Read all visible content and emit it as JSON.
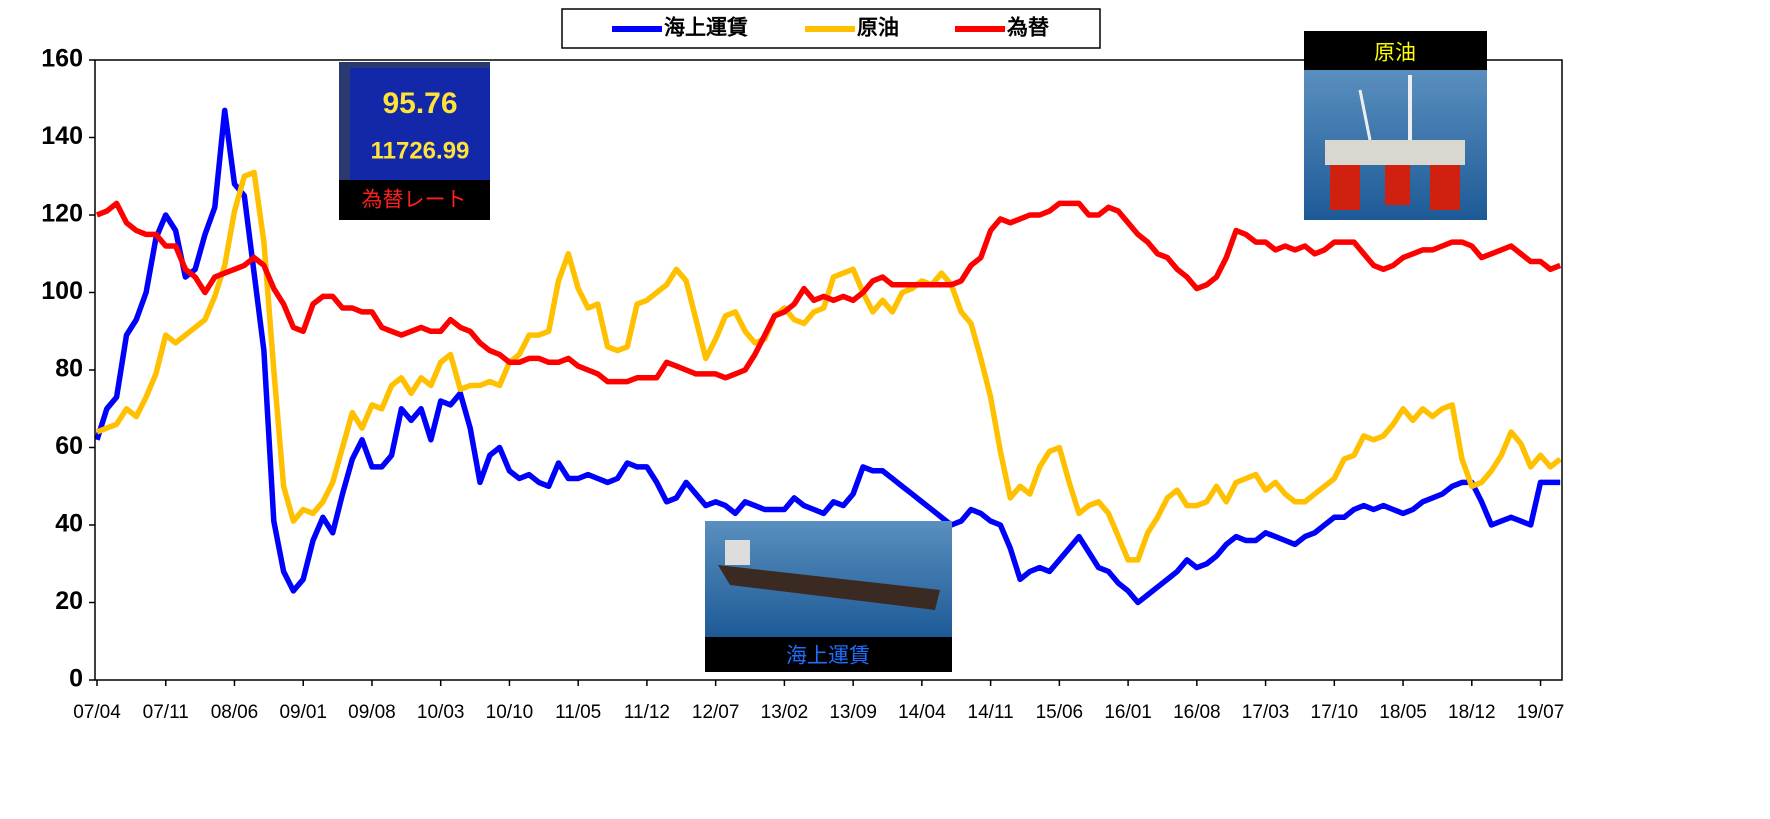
{
  "chart_data": {
    "type": "line",
    "categories": [
      "07/04",
      null,
      null,
      null,
      null,
      null,
      null,
      "07/11",
      null,
      null,
      null,
      null,
      null,
      null,
      "08/06",
      null,
      null,
      null,
      null,
      null,
      null,
      "09/01",
      null,
      null,
      null,
      null,
      null,
      null,
      "09/08",
      null,
      null,
      null,
      null,
      null,
      null,
      "10/03",
      null,
      null,
      null,
      null,
      null,
      null,
      "10/10",
      null,
      null,
      null,
      null,
      null,
      null,
      "11/05",
      null,
      null,
      null,
      null,
      null,
      null,
      "11/12",
      null,
      null,
      null,
      null,
      null,
      null,
      "12/07",
      null,
      null,
      null,
      null,
      null,
      null,
      "13/02",
      null,
      null,
      null,
      null,
      null,
      null,
      "13/09",
      null,
      null,
      null,
      null,
      null,
      null,
      "14/04",
      null,
      null,
      null,
      null,
      null,
      null,
      "14/11",
      null,
      null,
      null,
      null,
      null,
      null,
      "15/06",
      null,
      null,
      null,
      null,
      null,
      null,
      "16/01",
      null,
      null,
      null,
      null,
      null,
      null,
      "16/08",
      null,
      null,
      null,
      null,
      null,
      null,
      "17/03",
      null,
      null,
      null,
      null,
      null,
      null,
      "17/10",
      null,
      null,
      null,
      null,
      null,
      null,
      "18/05",
      null,
      null,
      null,
      null,
      null,
      null,
      "18/12",
      null,
      null,
      null,
      null,
      null,
      null,
      "19/07",
      null,
      null
    ],
    "series": [
      {
        "name": "海上運賃",
        "color": "#0000ff",
        "values": [
          62,
          70,
          73,
          89,
          93,
          100,
          114,
          120,
          116,
          104,
          106,
          115,
          122,
          147,
          128,
          125,
          105,
          85,
          41,
          28,
          23,
          26,
          36,
          42,
          38,
          48,
          57,
          62,
          55,
          55,
          58,
          70,
          67,
          70,
          62,
          72,
          71,
          74,
          65,
          51,
          58,
          60,
          54,
          52,
          53,
          51,
          50,
          56,
          52,
          52,
          53,
          52,
          51,
          52,
          56,
          55,
          55,
          51,
          46,
          47,
          51,
          48,
          45,
          46,
          45,
          43,
          46,
          45,
          44,
          44,
          44,
          47,
          45,
          44,
          43,
          46,
          45,
          48,
          55,
          54,
          54,
          52,
          50,
          48,
          46,
          44,
          42,
          40,
          41,
          44,
          43,
          41,
          40,
          34,
          26,
          28,
          29,
          28,
          31,
          34,
          37,
          33,
          29,
          28,
          25,
          23,
          20,
          22,
          24,
          26,
          28,
          31,
          29,
          30,
          32,
          35,
          37,
          36,
          36,
          38,
          37,
          36,
          35,
          37,
          38,
          40,
          42,
          42,
          44,
          45,
          44,
          45,
          44,
          43,
          44,
          46,
          47,
          48,
          50,
          51,
          51,
          46,
          40,
          41,
          42,
          41,
          40,
          51,
          51,
          51
        ]
      },
      {
        "name": "原油",
        "color": "#ffc000",
        "values": [
          64,
          65,
          66,
          70,
          68,
          73,
          79,
          89,
          87,
          89,
          91,
          93,
          99,
          107,
          121,
          130,
          131,
          113,
          80,
          50,
          41,
          44,
          43,
          46,
          51,
          60,
          69,
          65,
          71,
          70,
          76,
          78,
          74,
          78,
          76,
          82,
          84,
          75,
          76,
          76,
          77,
          76,
          82,
          84,
          89,
          89,
          90,
          103,
          110,
          101,
          96,
          97,
          86,
          85,
          86,
          97,
          98,
          100,
          102,
          106,
          103,
          93,
          83,
          88,
          94,
          95,
          90,
          87,
          88,
          94,
          96,
          93,
          92,
          95,
          96,
          104,
          105,
          106,
          100,
          95,
          98,
          95,
          100,
          101,
          103,
          102,
          105,
          102,
          95,
          92,
          83,
          73,
          59,
          47,
          50,
          48,
          55,
          59,
          60,
          51,
          43,
          45,
          46,
          43,
          37,
          31,
          31,
          38,
          42,
          47,
          49,
          45,
          45,
          46,
          50,
          46,
          51,
          52,
          53,
          49,
          51,
          48,
          46,
          46,
          48,
          50,
          52,
          57,
          58,
          63,
          62,
          63,
          66,
          70,
          67,
          70,
          68,
          70,
          71,
          57,
          50,
          51,
          54,
          58,
          64,
          61,
          55,
          58,
          55,
          57
        ]
      },
      {
        "name": "為替",
        "color": "#ff0000",
        "values": [
          120,
          121,
          123,
          118,
          116,
          115,
          115,
          112,
          112,
          106,
          104,
          100,
          104,
          105,
          106,
          107,
          109,
          107,
          101,
          97,
          91,
          90,
          97,
          99,
          99,
          96,
          96,
          95,
          95,
          91,
          90,
          89,
          90,
          91,
          90,
          90,
          93,
          91,
          90,
          87,
          85,
          84,
          82,
          82,
          83,
          83,
          82,
          82,
          83,
          81,
          80,
          79,
          77,
          77,
          77,
          78,
          78,
          78,
          82,
          81,
          80,
          79,
          79,
          79,
          78,
          79,
          80,
          84,
          89,
          94,
          95,
          97,
          101,
          98,
          99,
          98,
          99,
          98,
          100,
          103,
          104,
          102,
          102,
          102,
          102,
          102,
          102,
          102,
          103,
          107,
          109,
          116,
          119,
          118,
          119,
          120,
          120,
          121,
          123,
          123,
          123,
          120,
          120,
          122,
          121,
          118,
          115,
          113,
          110,
          109,
          106,
          104,
          101,
          102,
          104,
          109,
          116,
          115,
          113,
          113,
          111,
          112,
          111,
          112,
          110,
          111,
          113,
          113,
          113,
          110,
          107,
          106,
          107,
          109,
          110,
          111,
          111,
          112,
          113,
          113,
          112,
          109,
          110,
          111,
          112,
          110,
          108,
          108,
          106,
          107
        ]
      }
    ],
    "ylim": [
      0,
      160
    ],
    "yticks": [
      0,
      20,
      40,
      60,
      80,
      100,
      120,
      140,
      160
    ],
    "grid": false,
    "legend": "top",
    "annotations": [
      "為替レート",
      "95.76",
      "11726.99",
      "原油",
      "海上運賃"
    ]
  }
}
